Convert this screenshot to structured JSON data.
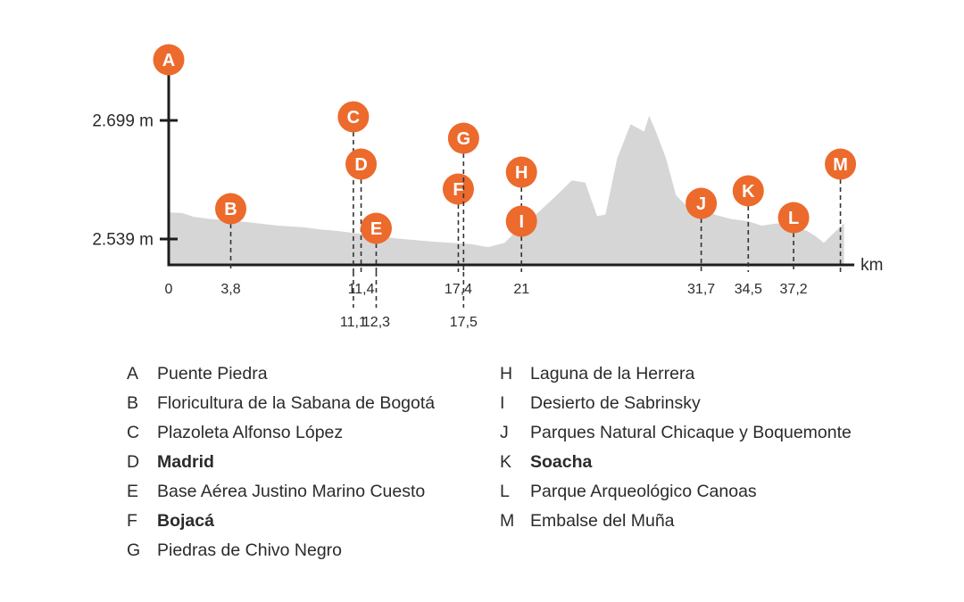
{
  "chart_data": {
    "type": "area",
    "x_unit": "km",
    "xlim": [
      0,
      40.6
    ],
    "y_ticks": [
      {
        "value": 2539,
        "label": "2.539 m"
      },
      {
        "value": 2699,
        "label": "2.699 m"
      }
    ],
    "profile": {
      "x": [
        0,
        0.8,
        1.5,
        2.5,
        3.8,
        5,
        6.5,
        8,
        9,
        10,
        11.1,
        11.4,
        12.3,
        13.5,
        15,
        16,
        17.4,
        17.5,
        18,
        19,
        20,
        21,
        22,
        23,
        24,
        24.8,
        25.5,
        26,
        26.7,
        27.5,
        28.3,
        28.6,
        29,
        29.6,
        30.2,
        31,
        31.7,
        32.5,
        33.5,
        34.5,
        35.3,
        36.2,
        37.2,
        38,
        38.5,
        39,
        39.5,
        40.2
      ],
      "y": [
        2575,
        2574,
        2569,
        2566,
        2564,
        2561,
        2557,
        2555,
        2552,
        2550,
        2547,
        2546,
        2544,
        2540,
        2537,
        2535,
        2533,
        2533,
        2532,
        2528,
        2534,
        2557,
        2575,
        2596,
        2618,
        2615,
        2570,
        2572,
        2648,
        2694,
        2684,
        2705,
        2684,
        2648,
        2598,
        2580,
        2585,
        2572,
        2566,
        2563,
        2557,
        2560,
        2556,
        2550,
        2543,
        2534,
        2545,
        2560
      ]
    },
    "markers": [
      {
        "letter": "A",
        "km": 0,
        "label": "0",
        "name": "Puente Piedra",
        "bold": false
      },
      {
        "letter": "B",
        "km": 3.8,
        "label": "3,8",
        "name": "Floricultura de la Sabana de Bogotá",
        "bold": false
      },
      {
        "letter": "C",
        "km": 11.1,
        "label": "11,1",
        "name": "Plazoleta Alfonso López",
        "bold": false
      },
      {
        "letter": "D",
        "km": 11.4,
        "label": "11,4",
        "name": "Madrid",
        "bold": true
      },
      {
        "letter": "E",
        "km": 12.3,
        "label": "12,3",
        "name": "Base Aérea Justino Marino Cuesto",
        "bold": false
      },
      {
        "letter": "F",
        "km": 17.4,
        "label": "17,4",
        "name": "Bojacá",
        "bold": true
      },
      {
        "letter": "G",
        "km": 17.5,
        "label": "17,5",
        "name": "Piedras de Chivo Negro",
        "bold": false
      },
      {
        "letter": "H",
        "km": 21,
        "label": "",
        "name": "Laguna de la Herrera",
        "bold": false
      },
      {
        "letter": "I",
        "km": 21,
        "label": "21",
        "name": "Desierto de Sabrinsky",
        "bold": false
      },
      {
        "letter": "J",
        "km": 31.7,
        "label": "31,7",
        "name": "Parques Natural Chicaque y Boquemonte",
        "bold": false
      },
      {
        "letter": "K",
        "km": 34.5,
        "label": "34,5",
        "name": "Soacha",
        "bold": true
      },
      {
        "letter": "L",
        "km": 37.2,
        "label": "37,2",
        "name": "Parque Arqueológico Canoas",
        "bold": false
      },
      {
        "letter": "M",
        "km": 40.2,
        "label": "",
        "name": "Embalse del Muña",
        "bold": false
      }
    ],
    "colors": {
      "marker": "#ec6a2c",
      "area": "#d6d6d6",
      "axis": "#1d1d1d"
    }
  }
}
